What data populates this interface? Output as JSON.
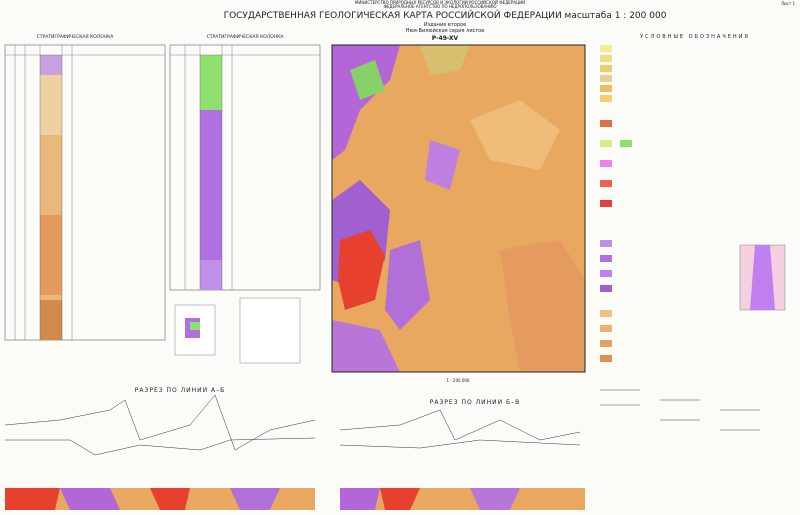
{
  "header": {
    "ministry": "МИНИСТЕРСТВО ПРИРОДНЫХ РЕСУРСОВ И ЭКОЛОГИИ РОССИЙСКОЙ ФЕДЕРАЦИИ",
    "agency": "ФЕДЕРАЛЬНОЕ АГЕНТСТВО ПО НЕДРОПОЛЬЗОВАНИЮ",
    "title": "ГОСУДАРСТВЕННАЯ ГЕОЛОГИЧЕСКАЯ КАРТА РОССИЙСКОЙ ФЕДЕРАЦИИ масштаба 1 : 200 000",
    "edition": "Издание второе",
    "series": "Нюя-Вилюйская серия листов",
    "sheet": "P-49-XV",
    "page": "Лист 1"
  },
  "columns": {
    "left_title": "СТРАТИГРАФИЧЕСКАЯ КОЛОНКА",
    "right_title": "СТРАТИГРАФИЧЕСКАЯ КОЛОНКА"
  },
  "legend": {
    "title": "УСЛОВНЫЕ ОБОЗНАЧЕНИЯ"
  },
  "map": {
    "scale": "1 : 200 000"
  },
  "sections": {
    "left_title": "РАЗРЕЗ ПО ЛИНИИ А–Б",
    "right_title": "РАЗРЕЗ ПО ЛИНИИ Б–В"
  }
}
